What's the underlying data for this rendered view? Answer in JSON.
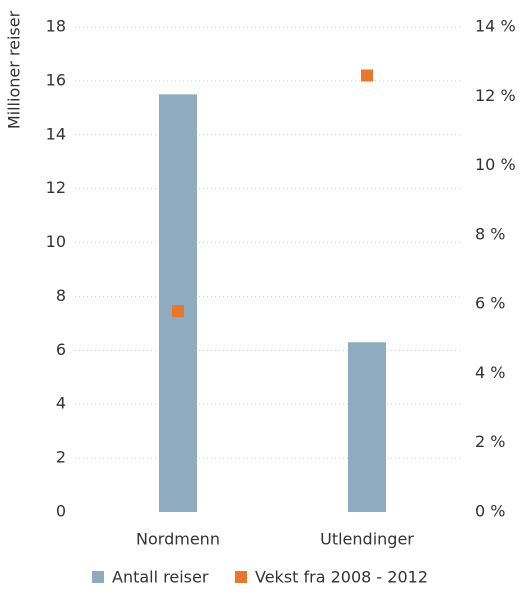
{
  "chart_data": {
    "type": "bar",
    "y_label": "Millioner reiser",
    "categories": [
      "Nordmenn",
      "Utlendinger"
    ],
    "series": [
      {
        "name": "Antall reiser",
        "color": "#8eabbf",
        "type": "bar",
        "values": [
          15.5,
          6.3
        ]
      },
      {
        "name": "Vekst fra 2008 - 2012",
        "color": "#e8772e",
        "type": "scatter",
        "axis": "y2",
        "values": [
          5.8,
          12.6
        ]
      }
    ],
    "ylim": [
      0,
      18
    ],
    "yticks": [
      0,
      2,
      4,
      6,
      8,
      10,
      12,
      14,
      16,
      18
    ],
    "y2lim": [
      0,
      14
    ],
    "y2ticks": [
      {
        "value": 0,
        "label": "0 %"
      },
      {
        "value": 2,
        "label": "2 %"
      },
      {
        "value": 4,
        "label": "4 %"
      },
      {
        "value": 6,
        "label": "6 %"
      },
      {
        "value": 8,
        "label": "8 %"
      },
      {
        "value": 10,
        "label": "10 %"
      },
      {
        "value": 12,
        "label": "12 %"
      },
      {
        "value": 14,
        "label": "14 %"
      }
    ],
    "grid": true
  }
}
